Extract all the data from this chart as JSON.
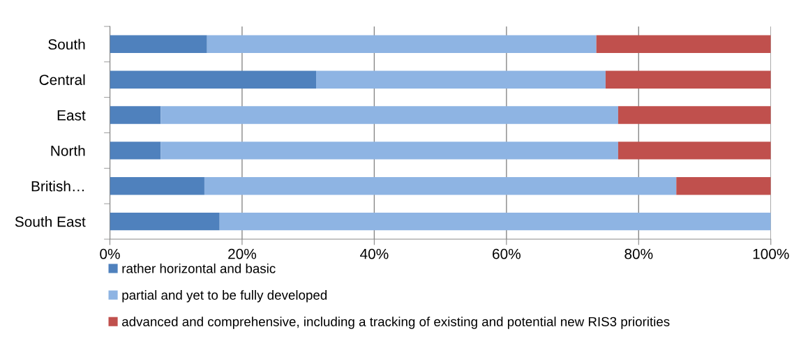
{
  "chart_data": {
    "type": "bar",
    "orientation": "horizontal",
    "stacked": true,
    "categories": [
      "South",
      "Central",
      "East",
      "North",
      "British…",
      "South East"
    ],
    "series": [
      {
        "name": "rather horizontal and basic",
        "color": "#4f81bd",
        "values": [
          14.7,
          31.2,
          7.7,
          7.7,
          14.3,
          16.6
        ]
      },
      {
        "name": "partial and yet to be fully developed",
        "color": "#8eb4e3",
        "values": [
          58.9,
          43.8,
          69.2,
          69.2,
          71.4,
          83.4
        ]
      },
      {
        "name": "advanced and comprehensive, including a tracking of existing and potential new RIS3 priorities",
        "color": "#c0504d",
        "values": [
          26.4,
          25.0,
          23.1,
          23.1,
          14.3,
          0
        ]
      }
    ],
    "xlim": [
      0,
      100
    ],
    "xticks": [
      {
        "value": 0,
        "label": "0%"
      },
      {
        "value": 20,
        "label": "20%"
      },
      {
        "value": 40,
        "label": "40%"
      },
      {
        "value": 60,
        "label": "60%"
      },
      {
        "value": 80,
        "label": "80%"
      },
      {
        "value": 100,
        "label": "100%"
      }
    ],
    "grid": "x",
    "legend": "bottom"
  }
}
